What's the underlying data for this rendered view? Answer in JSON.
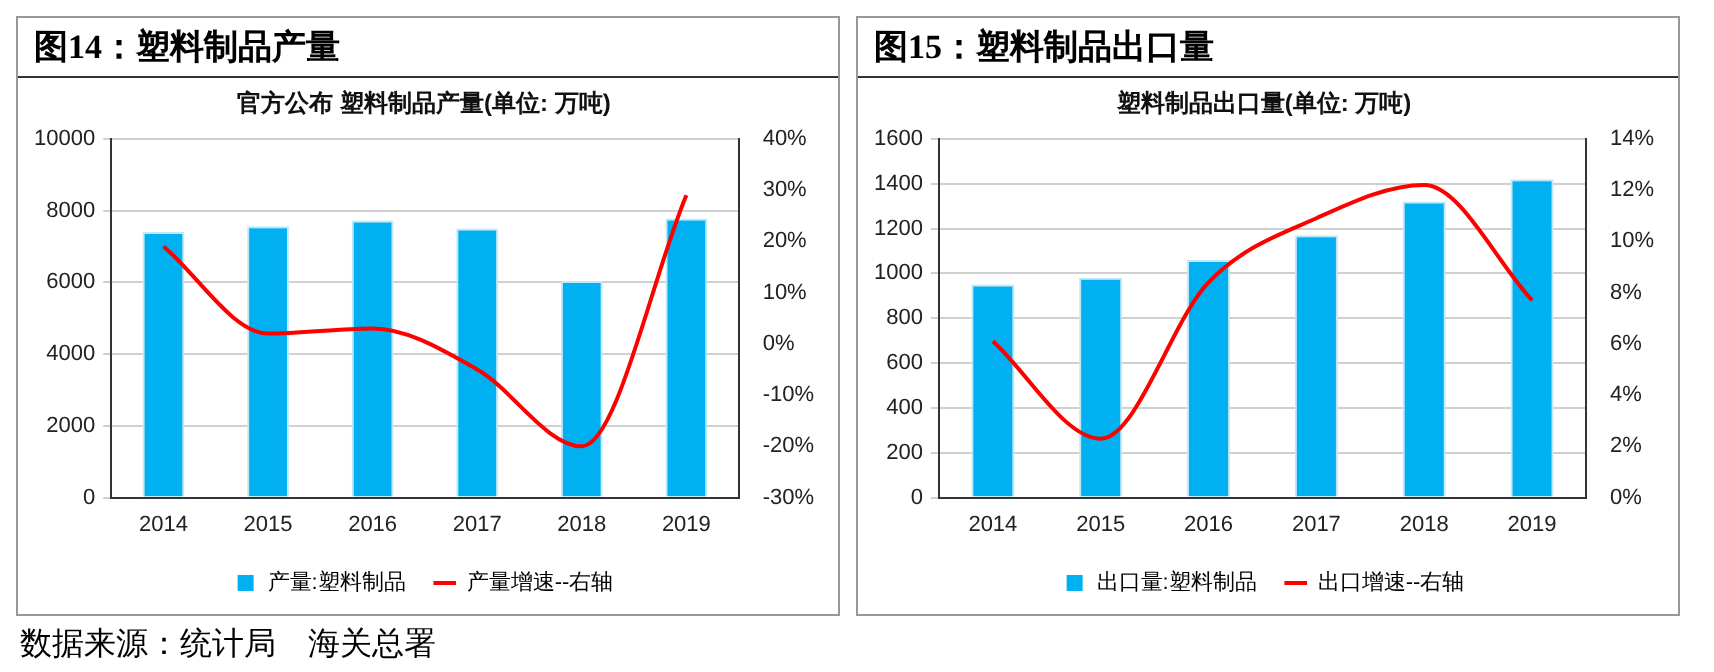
{
  "chart_data": [
    {
      "type": "bar",
      "title": "图14：塑料制品产量",
      "subtitle": "官方公布 塑料制品产量(单位: 万吨)",
      "categories": [
        "2014",
        "2015",
        "2016",
        "2017",
        "2018",
        "2019"
      ],
      "series": [
        {
          "name": "产量:塑料制品",
          "color": "#00b0f0",
          "values": [
            7400,
            7560,
            7720,
            7500,
            6040,
            7780
          ]
        },
        {
          "name": "产量增速--右轴",
          "type": "line",
          "axis": "y2",
          "color": "#ff0000",
          "values": [
            19,
            2,
            3,
            -5,
            -20,
            29
          ]
        }
      ],
      "ylim": [
        0,
        10000
      ],
      "yticks": [
        0,
        2000,
        4000,
        6000,
        8000,
        10000
      ],
      "y2lim": [
        -30,
        40
      ],
      "y2ticks": [
        {
          "value": -30,
          "label": "-30%"
        },
        {
          "value": -20,
          "label": "-20%"
        },
        {
          "value": -10,
          "label": "-10%"
        },
        {
          "value": 0,
          "label": "0%"
        },
        {
          "value": 10,
          "label": "10%"
        },
        {
          "value": 20,
          "label": "20%"
        },
        {
          "value": 30,
          "label": "30%"
        },
        {
          "value": 40,
          "label": "40%"
        }
      ],
      "grid": "y",
      "legend": "bottom",
      "marker": "none",
      "annotations": [
        "数据来源：统计局　海关总署"
      ]
    },
    {
      "type": "bar",
      "title": "图15：塑料制品出口量",
      "subtitle": "塑料制品出口量(单位: 万吨)",
      "categories": [
        "2014",
        "2015",
        "2016",
        "2017",
        "2018",
        "2019"
      ],
      "series": [
        {
          "name": "出口量:塑料制品",
          "color": "#00b0f0",
          "values": [
            950,
            980,
            1060,
            1170,
            1320,
            1420
          ]
        },
        {
          "name": "出口增速--右轴",
          "type": "line",
          "axis": "y2",
          "color": "#ff0000",
          "values": [
            6.1,
            2.3,
            8.4,
            10.9,
            12.2,
            7.7
          ]
        }
      ],
      "ylim": [
        0,
        1600
      ],
      "yticks": [
        0,
        200,
        400,
        600,
        800,
        1000,
        1200,
        1400,
        1600
      ],
      "y2lim": [
        0,
        14
      ],
      "y2ticks": [
        {
          "value": 0,
          "label": "0%"
        },
        {
          "value": 2,
          "label": "2%"
        },
        {
          "value": 4,
          "label": "4%"
        },
        {
          "value": 6,
          "label": "6%"
        },
        {
          "value": 8,
          "label": "8%"
        },
        {
          "value": 10,
          "label": "10%"
        },
        {
          "value": 12,
          "label": "12%"
        },
        {
          "value": 14,
          "label": "14%"
        }
      ],
      "grid": "y",
      "legend": "bottom",
      "marker": "none"
    }
  ]
}
